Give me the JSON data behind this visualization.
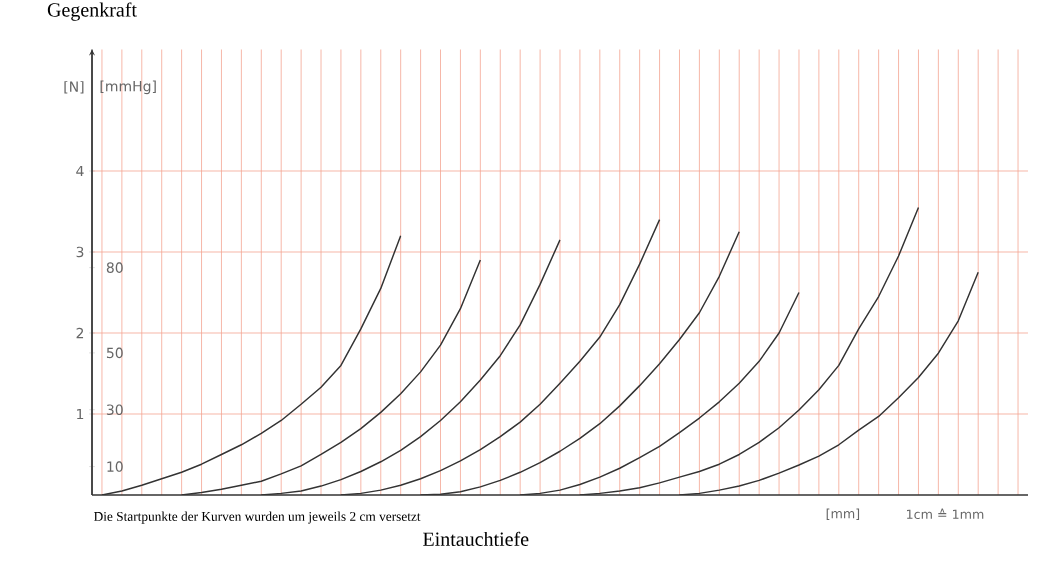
{
  "chart_data": {
    "type": "line",
    "title": "Gegenkraft",
    "ylabel": "[N]",
    "y2label": "[mmHg]",
    "xlabel": "Eintauchtiefe",
    "annotations": [
      "Die Startpunkte der Kurven wurden um jeweils 2 cm versetzt",
      "[mm]",
      "1cm ≙ 1mm"
    ],
    "categories": [
      null,
      null,
      null,
      null,
      null,
      null,
      null,
      null,
      null,
      null,
      null,
      null,
      null,
      null,
      null,
      null,
      null,
      null,
      null,
      null,
      null,
      null,
      null,
      null,
      null,
      null,
      null,
      null,
      null,
      null,
      null,
      null,
      null,
      null,
      null,
      null,
      null,
      null,
      null,
      null,
      null,
      null,
      null,
      null,
      null,
      null,
      null
    ],
    "series": [
      {
        "color": "#333333",
        "values": [
          0,
          0.05,
          0.12,
          0.2,
          0.28,
          0.38,
          0.5,
          0.62,
          0.76,
          0.92,
          1.12,
          1.33,
          1.6,
          2.05,
          2.55,
          3.2,
          null,
          null,
          null,
          null,
          null,
          null,
          null,
          null,
          null,
          null,
          null,
          null,
          null,
          null,
          null,
          null,
          null,
          null,
          null,
          null,
          null,
          null,
          null,
          null,
          null,
          null,
          null,
          null,
          null,
          null,
          null
        ]
      },
      {
        "color": "#333333",
        "values": [
          null,
          null,
          null,
          null,
          0,
          0.03,
          0.07,
          0.12,
          0.17,
          0.26,
          0.36,
          0.5,
          0.65,
          0.82,
          1.02,
          1.25,
          1.52,
          1.85,
          2.3,
          2.9,
          null,
          null,
          null,
          null,
          null,
          null,
          null,
          null,
          null,
          null,
          null,
          null,
          null,
          null,
          null,
          null,
          null,
          null,
          null,
          null,
          null,
          null,
          null,
          null,
          null,
          null,
          null
        ]
      },
      {
        "color": "#333333",
        "values": [
          null,
          null,
          null,
          null,
          null,
          null,
          null,
          null,
          0,
          0.02,
          0.05,
          0.11,
          0.19,
          0.29,
          0.41,
          0.55,
          0.72,
          0.92,
          1.15,
          1.42,
          1.72,
          2.1,
          2.6,
          3.15,
          null,
          null,
          null,
          null,
          null,
          null,
          null,
          null,
          null,
          null,
          null,
          null,
          null,
          null,
          null,
          null,
          null,
          null,
          null,
          null,
          null,
          null,
          null
        ]
      },
      {
        "color": "#333333",
        "values": [
          null,
          null,
          null,
          null,
          null,
          null,
          null,
          null,
          null,
          null,
          null,
          null,
          0,
          0.02,
          0.06,
          0.12,
          0.2,
          0.3,
          0.42,
          0.56,
          0.72,
          0.9,
          1.12,
          1.38,
          1.65,
          1.95,
          2.35,
          2.85,
          3.4,
          null,
          null,
          null,
          null,
          null,
          null,
          null,
          null,
          null,
          null,
          null,
          null,
          null,
          null,
          null,
          null,
          null,
          null
        ]
      },
      {
        "color": "#333333",
        "values": [
          null,
          null,
          null,
          null,
          null,
          null,
          null,
          null,
          null,
          null,
          null,
          null,
          null,
          null,
          null,
          null,
          0,
          0.01,
          0.04,
          0.1,
          0.18,
          0.28,
          0.4,
          0.54,
          0.7,
          0.88,
          1.1,
          1.35,
          1.62,
          1.92,
          2.25,
          2.7,
          3.25,
          null,
          null,
          null,
          null,
          null,
          null,
          null,
          null,
          null,
          null,
          null,
          null,
          null,
          null
        ]
      },
      {
        "color": "#333333",
        "values": [
          null,
          null,
          null,
          null,
          null,
          null,
          null,
          null,
          null,
          null,
          null,
          null,
          null,
          null,
          null,
          null,
          null,
          null,
          null,
          null,
          null,
          0,
          0.02,
          0.06,
          0.13,
          0.22,
          0.33,
          0.46,
          0.6,
          0.77,
          0.95,
          1.15,
          1.38,
          1.65,
          2.0,
          2.5,
          null,
          null,
          null,
          null,
          null,
          null,
          null,
          null,
          null,
          null,
          null
        ]
      },
      {
        "color": "#333333",
        "values": [
          null,
          null,
          null,
          null,
          null,
          null,
          null,
          null,
          null,
          null,
          null,
          null,
          null,
          null,
          null,
          null,
          null,
          null,
          null,
          null,
          null,
          null,
          null,
          null,
          0,
          0.02,
          0.05,
          0.09,
          0.15,
          0.22,
          0.29,
          0.38,
          0.5,
          0.65,
          0.83,
          1.05,
          1.3,
          1.6,
          2.05,
          2.45,
          2.95,
          3.55,
          null,
          null,
          null,
          null,
          null
        ]
      },
      {
        "color": "#333333",
        "values": [
          null,
          null,
          null,
          null,
          null,
          null,
          null,
          null,
          null,
          null,
          null,
          null,
          null,
          null,
          null,
          null,
          null,
          null,
          null,
          null,
          null,
          null,
          null,
          null,
          null,
          null,
          null,
          null,
          null,
          0,
          0.02,
          0.06,
          0.11,
          0.18,
          0.27,
          0.37,
          0.48,
          0.62,
          0.8,
          0.97,
          1.2,
          1.45,
          1.75,
          2.15,
          2.75,
          null,
          null
        ]
      }
    ],
    "ylim": [
      0,
      5.5
    ],
    "yticks": [
      1,
      2,
      3,
      4
    ],
    "y2lim": [
      0,
      156.75
    ],
    "y2ticks": [
      10,
      30,
      50,
      80
    ],
    "grid": true
  }
}
